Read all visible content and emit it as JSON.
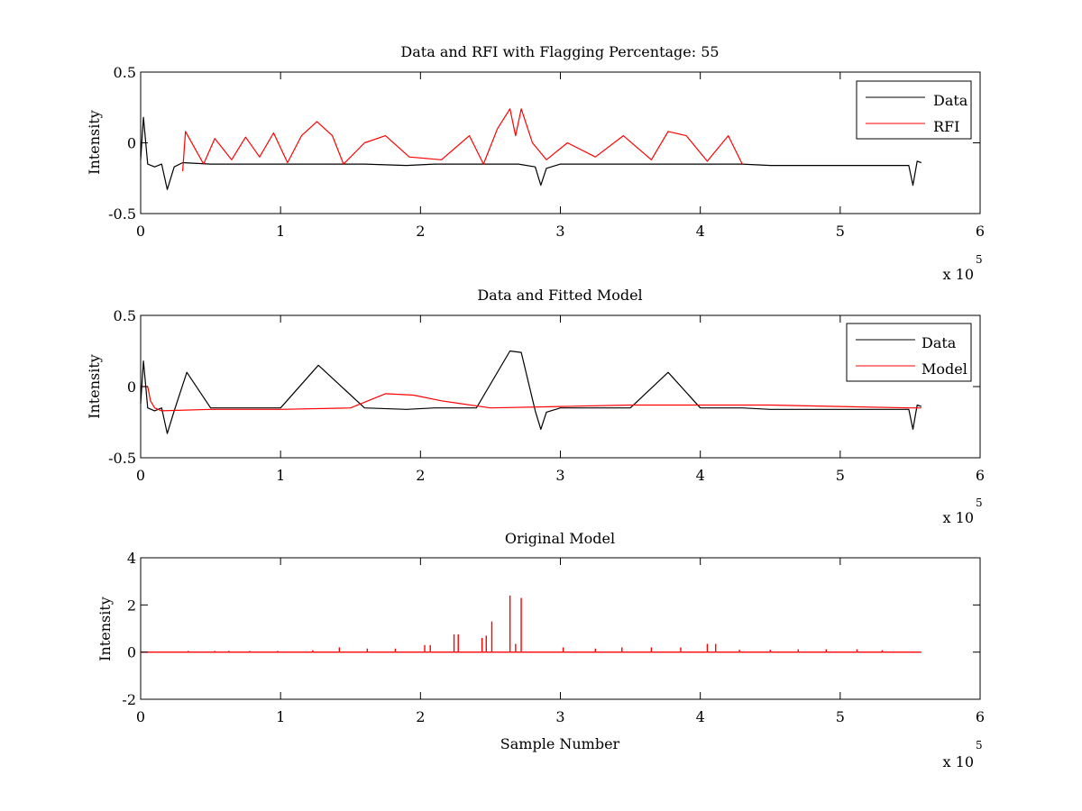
{
  "figure": {
    "background": "#ffffff"
  },
  "chart_data": [
    {
      "type": "line",
      "title": "Data and RFI with Flagging Percentage: 55",
      "xlabel": "",
      "ylabel": "Intensity",
      "xlim": [
        0,
        6
      ],
      "ylim": [
        -0.5,
        0.5
      ],
      "xticks": [
        "0",
        "1",
        "2",
        "3",
        "4",
        "5",
        "6"
      ],
      "yticks": [
        "-0.5",
        "0",
        "0.5"
      ],
      "x_exponent_label": "x 10",
      "x_exponent": "5",
      "grid": false,
      "legend_position": "top-right",
      "legend": [
        {
          "name": "Data",
          "color": "#000000"
        },
        {
          "name": "RFI",
          "color": "#ff0000"
        }
      ],
      "series": [
        {
          "name": "Data",
          "color": "#000000",
          "x": [
            0,
            0.02,
            0.05,
            0.1,
            0.15,
            0.19,
            0.24,
            0.3,
            0.5,
            0.8,
            1.0,
            1.3,
            1.6,
            1.9,
            2.1,
            2.4,
            2.7,
            2.82,
            2.86,
            2.9,
            3.0,
            3.5,
            4.0,
            4.3,
            4.5,
            5.0,
            5.4,
            5.49,
            5.52,
            5.55,
            5.58
          ],
          "y": [
            -0.12,
            0.18,
            -0.15,
            -0.17,
            -0.15,
            -0.33,
            -0.17,
            -0.14,
            -0.15,
            -0.15,
            -0.15,
            -0.15,
            -0.15,
            -0.16,
            -0.15,
            -0.15,
            -0.15,
            -0.17,
            -0.3,
            -0.18,
            -0.15,
            -0.15,
            -0.15,
            -0.15,
            -0.16,
            -0.16,
            -0.16,
            -0.16,
            -0.3,
            -0.13,
            -0.14
          ]
        },
        {
          "name": "RFI",
          "color": "#ff0000",
          "x": [
            0.3,
            0.32,
            0.45,
            0.53,
            0.65,
            0.75,
            0.85,
            0.95,
            1.05,
            1.15,
            1.26,
            1.37,
            1.45,
            1.6,
            1.75,
            1.92,
            2.15,
            2.35,
            2.45,
            2.55,
            2.64,
            2.68,
            2.72,
            2.8,
            2.9,
            3.05,
            3.25,
            3.45,
            3.65,
            3.77,
            3.9,
            4.05,
            4.2,
            4.3
          ],
          "y": [
            -0.2,
            0.08,
            -0.15,
            0.03,
            -0.12,
            0.04,
            -0.1,
            0.07,
            -0.14,
            0.05,
            0.15,
            0.05,
            -0.15,
            0.0,
            0.05,
            -0.1,
            -0.12,
            0.05,
            -0.15,
            0.1,
            0.24,
            0.05,
            0.24,
            0.0,
            -0.12,
            0.0,
            -0.1,
            0.05,
            -0.12,
            0.08,
            0.05,
            -0.13,
            0.05,
            -0.15
          ]
        }
      ]
    },
    {
      "type": "line",
      "title": "Data and Fitted Model",
      "xlabel": "",
      "ylabel": "Intensity",
      "xlim": [
        0,
        6
      ],
      "ylim": [
        -0.5,
        0.5
      ],
      "xticks": [
        "0",
        "1",
        "2",
        "3",
        "4",
        "5",
        "6"
      ],
      "yticks": [
        "-0.5",
        "0",
        "0.5"
      ],
      "x_exponent_label": "x 10",
      "x_exponent": "5",
      "grid": false,
      "legend_position": "top-right",
      "legend": [
        {
          "name": "Data",
          "color": "#000000"
        },
        {
          "name": "Model",
          "color": "#ff0000"
        }
      ],
      "series": [
        {
          "name": "Data",
          "color": "#000000",
          "x": [
            0,
            0.02,
            0.05,
            0.1,
            0.15,
            0.19,
            0.24,
            0.33,
            0.5,
            0.8,
            1.0,
            1.27,
            1.6,
            1.9,
            2.1,
            2.4,
            2.64,
            2.72,
            2.82,
            2.86,
            2.9,
            3.0,
            3.5,
            3.77,
            4.0,
            4.3,
            4.5,
            5.0,
            5.4,
            5.49,
            5.52,
            5.55,
            5.58
          ],
          "y": [
            -0.12,
            0.18,
            -0.15,
            -0.17,
            -0.15,
            -0.33,
            -0.17,
            0.1,
            -0.15,
            -0.15,
            -0.15,
            0.15,
            -0.15,
            -0.16,
            -0.15,
            -0.15,
            0.25,
            0.24,
            -0.17,
            -0.3,
            -0.18,
            -0.15,
            -0.15,
            0.1,
            -0.15,
            -0.15,
            -0.16,
            -0.16,
            -0.16,
            -0.16,
            -0.3,
            -0.13,
            -0.14
          ]
        },
        {
          "name": "Model",
          "color": "#ff0000",
          "x": [
            0,
            0.05,
            0.07,
            0.1,
            0.15,
            0.5,
            1.0,
            1.5,
            1.75,
            1.95,
            2.15,
            2.5,
            3.0,
            3.5,
            4.0,
            4.5,
            5.0,
            5.5,
            5.58
          ],
          "y": [
            0.0,
            0.0,
            -0.1,
            -0.15,
            -0.17,
            -0.16,
            -0.16,
            -0.15,
            -0.05,
            -0.06,
            -0.1,
            -0.15,
            -0.14,
            -0.13,
            -0.13,
            -0.13,
            -0.14,
            -0.15,
            -0.15
          ]
        }
      ]
    },
    {
      "type": "line",
      "title": "Original Model",
      "xlabel": "Sample Number",
      "ylabel": "Intensity",
      "xlim": [
        0,
        6
      ],
      "ylim": [
        -2,
        4
      ],
      "xticks": [
        "0",
        "1",
        "2",
        "3",
        "4",
        "5",
        "6"
      ],
      "yticks": [
        "-2",
        "0",
        "2",
        "4"
      ],
      "x_exponent_label": "x 10",
      "x_exponent": "5",
      "grid": false,
      "legend_position": "none",
      "series": [
        {
          "name": "",
          "color": "#ff0000",
          "baseline": [
            0,
            5.58
          ],
          "spikes_x": [
            0.34,
            0.53,
            0.63,
            0.78,
            0.98,
            1.23,
            1.42,
            1.62,
            1.82,
            2.03,
            2.07,
            2.24,
            2.27,
            2.44,
            2.47,
            2.51,
            2.64,
            2.68,
            2.72,
            3.02,
            3.25,
            3.44,
            3.65,
            3.86,
            4.05,
            4.11,
            4.28,
            4.5,
            4.7,
            4.9,
            5.12,
            5.3
          ],
          "spikes_y": [
            0.05,
            0.05,
            0.05,
            0.05,
            0.05,
            0.08,
            0.2,
            0.15,
            0.15,
            0.3,
            0.3,
            0.75,
            0.75,
            0.6,
            0.7,
            1.3,
            2.4,
            0.35,
            2.3,
            0.2,
            0.15,
            0.2,
            0.2,
            0.2,
            0.35,
            0.35,
            0.1,
            0.1,
            0.12,
            0.12,
            0.12,
            0.08
          ]
        }
      ]
    }
  ]
}
